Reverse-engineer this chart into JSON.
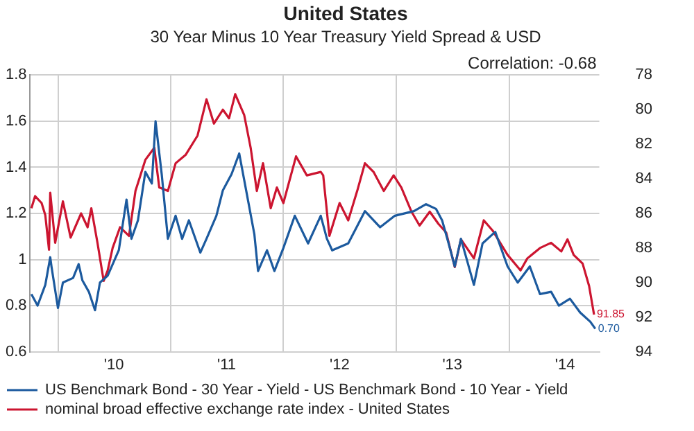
{
  "chart_data": {
    "type": "line",
    "title": "United States",
    "subtitle": "30 Year Minus 10 Year Treasury Yield Spread & USD",
    "annotations": [
      "Correlation: -0.68"
    ],
    "xlim": [
      "2009-10-01",
      "2014-10-20"
    ],
    "xticks": [
      {
        "value": "2010-01-01",
        "label": null
      },
      {
        "value": "2010-07-01",
        "label": "'10"
      },
      {
        "value": "2011-01-01",
        "label": null
      },
      {
        "value": "2011-07-01",
        "label": "'11"
      },
      {
        "value": "2012-01-01",
        "label": null
      },
      {
        "value": "2012-07-01",
        "label": "'12"
      },
      {
        "value": "2013-01-01",
        "label": null
      },
      {
        "value": "2013-07-01",
        "label": "'13"
      },
      {
        "value": "2014-01-01",
        "label": null
      },
      {
        "value": "2014-07-01",
        "label": "'14"
      }
    ],
    "ylim": [
      0.6,
      1.8
    ],
    "yticks": [
      0.6,
      0.8,
      1,
      1.2,
      1.4,
      1.6,
      1.8
    ],
    "y2lim": [
      94,
      78
    ],
    "y2ticks": [
      78,
      80,
      82,
      84,
      86,
      88,
      90,
      92,
      94
    ],
    "grid": true,
    "legend": "bottom",
    "marker": "none",
    "line_style": "solid",
    "series": [
      {
        "name": "US Benchmark Bond - 30 Year - Yield - US Benchmark Bond - 10 Year - Yield",
        "color": "#1c5a9e",
        "x": [
          "2009-10-07",
          "2009-10-27",
          "2009-11-21",
          "2009-12-07",
          "2009-12-11",
          "2010-01-01",
          "2010-01-17",
          "2010-02-19",
          "2010-03-09",
          "2010-03-21",
          "2010-04-11",
          "2010-05-01",
          "2010-05-17",
          "2010-06-11",
          "2010-07-17",
          "2010-08-11",
          "2010-08-27",
          "2010-09-17",
          "2010-10-11",
          "2010-11-01",
          "2010-11-13",
          "2010-12-03",
          "2010-12-23",
          "2011-01-17",
          "2011-02-07",
          "2011-03-01",
          "2011-04-07",
          "2011-04-27",
          "2011-05-29",
          "2011-06-19",
          "2011-07-17",
          "2011-08-11",
          "2011-09-01",
          "2011-09-29",
          "2011-10-11",
          "2011-11-09",
          "2011-12-03",
          "2012-01-01",
          "2012-02-07",
          "2012-03-21",
          "2012-05-01",
          "2012-05-21",
          "2012-06-07",
          "2012-07-29",
          "2012-09-21",
          "2012-11-09",
          "2012-12-27",
          "2013-02-27",
          "2013-04-07",
          "2013-05-09",
          "2013-05-29",
          "2013-06-19",
          "2013-07-09",
          "2013-07-29",
          "2013-09-09",
          "2013-10-07",
          "2013-11-17",
          "2013-12-27",
          "2014-01-29",
          "2014-03-09",
          "2014-04-11",
          "2014-05-17",
          "2014-06-11",
          "2014-07-17",
          "2014-08-19",
          "2014-09-21",
          "2014-10-07"
        ],
        "values": [
          0.85,
          0.8,
          0.89,
          1.01,
          0.97,
          0.79,
          0.9,
          0.92,
          0.98,
          0.91,
          0.86,
          0.78,
          0.9,
          0.93,
          1.04,
          1.26,
          1.09,
          1.17,
          1.38,
          1.33,
          1.6,
          1.37,
          1.09,
          1.19,
          1.09,
          1.17,
          1.03,
          1.09,
          1.19,
          1.3,
          1.37,
          1.46,
          1.31,
          1.11,
          0.95,
          1.04,
          0.95,
          1.05,
          1.19,
          1.07,
          1.19,
          1.09,
          1.04,
          1.07,
          1.21,
          1.14,
          1.19,
          1.21,
          1.24,
          1.22,
          1.17,
          1.07,
          0.97,
          1.09,
          0.89,
          1.07,
          1.12,
          0.97,
          0.9,
          0.97,
          0.85,
          0.86,
          0.8,
          0.83,
          0.77,
          0.73,
          0.7
        ],
        "value_labels": [
          null,
          null,
          null,
          null,
          null,
          null,
          null,
          null,
          null,
          null,
          null,
          null,
          null,
          null,
          null,
          null,
          null,
          null,
          null,
          null,
          null,
          null,
          null,
          null,
          null,
          null,
          null,
          null,
          null,
          null,
          null,
          null,
          null,
          null,
          null,
          null,
          null,
          null,
          null,
          null,
          null,
          null,
          null,
          null,
          null,
          null,
          null,
          null,
          null,
          null,
          null,
          null,
          null,
          null,
          null,
          null,
          null,
          null,
          null,
          null,
          null,
          null,
          null,
          null,
          null,
          null,
          "0.70"
        ]
      },
      {
        "name": "nominal broad effective exchange rate index - United States",
        "color": "#cc1530",
        "axis": "y2",
        "x": [
          "2009-10-07",
          "2009-10-19",
          "2009-11-09",
          "2009-11-21",
          "2009-12-03",
          "2009-12-07",
          "2009-12-23",
          "2010-01-17",
          "2010-02-11",
          "2010-03-17",
          "2010-04-07",
          "2010-04-19",
          "2010-05-09",
          "2010-05-29",
          "2010-06-11",
          "2010-06-27",
          "2010-07-21",
          "2010-08-19",
          "2010-09-09",
          "2010-10-11",
          "2010-11-09",
          "2010-11-25",
          "2010-12-23",
          "2011-01-17",
          "2011-02-19",
          "2011-03-29",
          "2011-04-27",
          "2011-05-21",
          "2011-06-19",
          "2011-07-09",
          "2011-07-29",
          "2011-08-27",
          "2011-09-17",
          "2011-10-07",
          "2011-10-27",
          "2011-11-21",
          "2011-12-11",
          "2012-01-01",
          "2012-02-11",
          "2012-03-17",
          "2012-05-01",
          "2012-05-09",
          "2012-05-29",
          "2012-07-01",
          "2012-07-29",
          "2012-08-27",
          "2012-09-21",
          "2012-10-19",
          "2012-11-21",
          "2012-12-23",
          "2013-01-17",
          "2013-02-19",
          "2013-03-17",
          "2013-04-19",
          "2013-05-17",
          "2013-06-11",
          "2013-07-09",
          "2013-07-29",
          "2013-09-09",
          "2013-10-11",
          "2013-11-09",
          "2013-12-27",
          "2014-02-07",
          "2014-03-01",
          "2014-04-11",
          "2014-05-17",
          "2014-06-19",
          "2014-07-09",
          "2014-07-29",
          "2014-08-27",
          "2014-09-17",
          "2014-10-03"
        ],
        "values": [
          85.7,
          85.0,
          85.4,
          86.1,
          88.1,
          84.8,
          87.7,
          85.3,
          87.4,
          86.0,
          86.8,
          85.7,
          87.7,
          89.9,
          89.3,
          88.0,
          86.8,
          87.3,
          84.7,
          82.9,
          82.2,
          84.5,
          84.7,
          83.1,
          82.6,
          81.5,
          79.4,
          80.8,
          80.0,
          80.5,
          79.1,
          80.3,
          82.2,
          84.7,
          83.1,
          85.7,
          84.5,
          85.4,
          82.7,
          83.8,
          83.6,
          83.8,
          87.3,
          85.4,
          86.4,
          84.7,
          83.1,
          83.6,
          84.7,
          83.8,
          84.5,
          85.9,
          86.7,
          85.9,
          86.6,
          87.1,
          89.1,
          87.5,
          88.6,
          86.4,
          87.0,
          88.4,
          89.3,
          88.6,
          88.0,
          87.7,
          88.2,
          87.5,
          88.4,
          88.9,
          90.2,
          91.85
        ],
        "value_labels": [
          null,
          null,
          null,
          null,
          null,
          null,
          null,
          null,
          null,
          null,
          null,
          null,
          null,
          null,
          null,
          null,
          null,
          null,
          null,
          null,
          null,
          null,
          null,
          null,
          null,
          null,
          null,
          null,
          null,
          null,
          null,
          null,
          null,
          null,
          null,
          null,
          null,
          null,
          null,
          null,
          null,
          null,
          null,
          null,
          null,
          null,
          null,
          null,
          null,
          null,
          null,
          null,
          null,
          null,
          null,
          null,
          null,
          null,
          null,
          null,
          null,
          null,
          null,
          null,
          null,
          null,
          null,
          null,
          null,
          null,
          null,
          "91.85"
        ]
      }
    ]
  }
}
